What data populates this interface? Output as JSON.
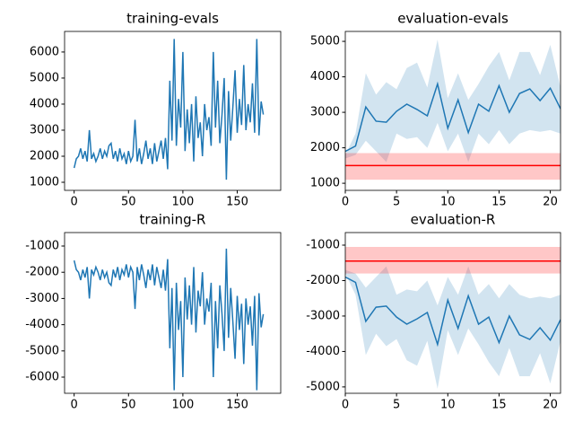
{
  "chart_data": [
    {
      "type": "line",
      "title": "training-evals",
      "color": "#1f77b4",
      "x": [
        0,
        2,
        4,
        6,
        8,
        10,
        12,
        14,
        16,
        18,
        20,
        22,
        24,
        26,
        28,
        30,
        32,
        34,
        36,
        38,
        40,
        42,
        44,
        46,
        48,
        50,
        52,
        54,
        56,
        58,
        60,
        62,
        64,
        66,
        68,
        70,
        72,
        74,
        76,
        78,
        80,
        82,
        84,
        86,
        88,
        90,
        92,
        94,
        96,
        98,
        100,
        102,
        104,
        106,
        108,
        110,
        112,
        114,
        116,
        118,
        120,
        122,
        124,
        126,
        128,
        130,
        132,
        134,
        136,
        138,
        140,
        142,
        144,
        146,
        148,
        150,
        152,
        154,
        156,
        158,
        160,
        162,
        164,
        166,
        168,
        170,
        172,
        174
      ],
      "values": [
        1550,
        1900,
        2000,
        2300,
        1900,
        2200,
        1800,
        3000,
        1900,
        2100,
        1800,
        2000,
        2300,
        1900,
        2200,
        2000,
        2400,
        2500,
        1900,
        2200,
        1800,
        2300,
        1900,
        2100,
        1700,
        2200,
        1800,
        2000,
        3400,
        1800,
        2300,
        1700,
        2100,
        2600,
        1900,
        2300,
        1700,
        2500,
        1800,
        2200,
        2600,
        1900,
        2700,
        1500,
        4900,
        2600,
        6500,
        2400,
        4200,
        3100,
        6000,
        2200,
        3800,
        2500,
        4000,
        1800,
        4300,
        2700,
        3300,
        2000,
        4000,
        3000,
        3500,
        2400,
        6000,
        3100,
        4900,
        2500,
        3600,
        5000,
        1100,
        4500,
        2600,
        3900,
        5300,
        2900,
        4200,
        3200,
        5500,
        3000,
        4000,
        3300,
        4800,
        2900,
        6500,
        2800,
        4100,
        3600
      ],
      "xlim": [
        -8.8,
        190
      ],
      "ylim": [
        690,
        6790
      ],
      "xticks": [
        0,
        50,
        100,
        150
      ],
      "yticks": [
        1000,
        2000,
        3000,
        4000,
        5000,
        6000
      ]
    },
    {
      "type": "line",
      "title": "evaluation-evals",
      "color": "#1f77b4",
      "x": [
        0,
        1,
        2,
        3,
        4,
        5,
        6,
        7,
        8,
        9,
        10,
        11,
        12,
        13,
        14,
        15,
        16,
        17,
        18,
        19,
        20,
        21
      ],
      "values": [
        1900,
        2050,
        3150,
        2750,
        2720,
        3030,
        3230,
        3080,
        2900,
        3800,
        2550,
        3350,
        2430,
        3230,
        3030,
        3750,
        3000,
        3530,
        3660,
        3330,
        3680,
        3100
      ],
      "upper": [
        1800,
        2400,
        4100,
        3500,
        3850,
        3650,
        4250,
        4400,
        3700,
        5050,
        3400,
        4100,
        3350,
        3800,
        4300,
        4700,
        3900,
        4700,
        4700,
        4050,
        4900,
        3700
      ],
      "lower": [
        1700,
        1800,
        2200,
        1900,
        1600,
        2400,
        2250,
        2300,
        2000,
        2700,
        1900,
        2400,
        1600,
        2400,
        2100,
        2500,
        2100,
        2400,
        2500,
        2450,
        2500,
        2400
      ],
      "band_color": "#1f77b4",
      "reference": {
        "value": 1500,
        "lower": 1100,
        "upper": 1850,
        "color": "#ff0000"
      },
      "xlim": [
        0,
        21
      ],
      "ylim": [
        800,
        5280
      ],
      "xticks": [
        0,
        5,
        10,
        15,
        20
      ],
      "yticks": [
        1000,
        2000,
        3000,
        4000,
        5000
      ]
    },
    {
      "type": "line",
      "title": "training-R",
      "color": "#1f77b4",
      "x": [
        0,
        2,
        4,
        6,
        8,
        10,
        12,
        14,
        16,
        18,
        20,
        22,
        24,
        26,
        28,
        30,
        32,
        34,
        36,
        38,
        40,
        42,
        44,
        46,
        48,
        50,
        52,
        54,
        56,
        58,
        60,
        62,
        64,
        66,
        68,
        70,
        72,
        74,
        76,
        78,
        80,
        82,
        84,
        86,
        88,
        90,
        92,
        94,
        96,
        98,
        100,
        102,
        104,
        106,
        108,
        110,
        112,
        114,
        116,
        118,
        120,
        122,
        124,
        126,
        128,
        130,
        132,
        134,
        136,
        138,
        140,
        142,
        144,
        146,
        148,
        150,
        152,
        154,
        156,
        158,
        160,
        162,
        164,
        166,
        168,
        170,
        172,
        174
      ],
      "values": [
        -1550,
        -1900,
        -2000,
        -2300,
        -1900,
        -2200,
        -1800,
        -3000,
        -1900,
        -2100,
        -1800,
        -2000,
        -2300,
        -1900,
        -2200,
        -2000,
        -2400,
        -2500,
        -1900,
        -2200,
        -1800,
        -2300,
        -1900,
        -2100,
        -1700,
        -2200,
        -1800,
        -2000,
        -3400,
        -1800,
        -2300,
        -1700,
        -2100,
        -2600,
        -1900,
        -2300,
        -1700,
        -2500,
        -1800,
        -2200,
        -2600,
        -1900,
        -2700,
        -1500,
        -4900,
        -2600,
        -6500,
        -2400,
        -4200,
        -3100,
        -6000,
        -2200,
        -3800,
        -2500,
        -4000,
        -1800,
        -4300,
        -2700,
        -3300,
        -2000,
        -4000,
        -3000,
        -3500,
        -2400,
        -6000,
        -3100,
        -4900,
        -2500,
        -3600,
        -5000,
        -1100,
        -4500,
        -2600,
        -3900,
        -5300,
        -2900,
        -4200,
        -3200,
        -5500,
        -3000,
        -4000,
        -3300,
        -4800,
        -2900,
        -6500,
        -2800,
        -4100,
        -3600
      ],
      "xlim": [
        -8.8,
        190
      ],
      "ylim": [
        -6616,
        -486
      ],
      "xticks": [
        0,
        50,
        100,
        150
      ],
      "yticks": [
        -6000,
        -5000,
        -4000,
        -3000,
        -2000,
        -1000
      ]
    },
    {
      "type": "line",
      "title": "evaluation-R",
      "color": "#1f77b4",
      "x": [
        0,
        1,
        2,
        3,
        4,
        5,
        6,
        7,
        8,
        9,
        10,
        11,
        12,
        13,
        14,
        15,
        16,
        17,
        18,
        19,
        20,
        21
      ],
      "values": [
        -1900,
        -2050,
        -3150,
        -2750,
        -2720,
        -3030,
        -3230,
        -3080,
        -2900,
        -3800,
        -2550,
        -3350,
        -2430,
        -3230,
        -3030,
        -3750,
        -3000,
        -3530,
        -3660,
        -3330,
        -3680,
        -3100
      ],
      "upper": [
        -1700,
        -1800,
        -2200,
        -1900,
        -1600,
        -2400,
        -2250,
        -2300,
        -2000,
        -2700,
        -1900,
        -2400,
        -1600,
        -2400,
        -2100,
        -2500,
        -2100,
        -2400,
        -2500,
        -2450,
        -2500,
        -2400
      ],
      "lower": [
        -1800,
        -2400,
        -4100,
        -3500,
        -3850,
        -3650,
        -4250,
        -4400,
        -3700,
        -5050,
        -3400,
        -4100,
        -3350,
        -3800,
        -4300,
        -4700,
        -3900,
        -4700,
        -4700,
        -4050,
        -4900,
        -3700
      ],
      "band_color": "#1f77b4",
      "reference": {
        "value": -1450,
        "lower": -1800,
        "upper": -1050,
        "color": "#ff0000"
      },
      "xlim": [
        0,
        21
      ],
      "ylim": [
        -5180,
        -645
      ],
      "xticks": [
        0,
        5,
        10,
        15,
        20
      ],
      "yticks": [
        -5000,
        -4000,
        -3000,
        -2000,
        -1000
      ]
    }
  ]
}
